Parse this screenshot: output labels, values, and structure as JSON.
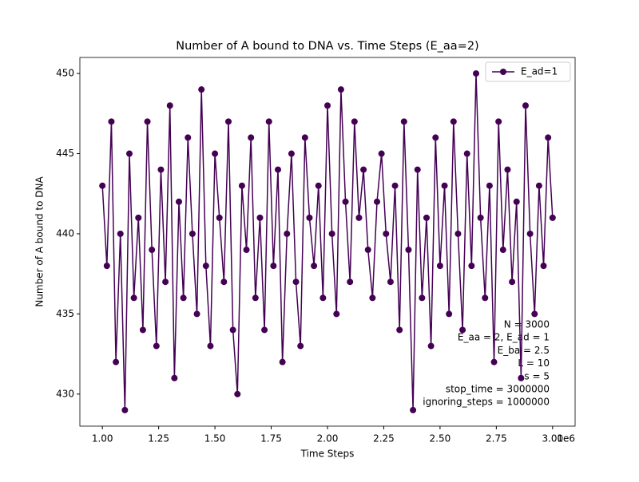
{
  "chart_data": {
    "type": "line",
    "title": "Number of A bound to DNA vs. Time Steps (E_aa=2)",
    "xlabel": "Time Steps",
    "ylabel": "Number of A bound to DNA",
    "x_offset_label": "1e6",
    "x": [
      1000000,
      1020000,
      1040000,
      1060000,
      1080000,
      1100000,
      1120000,
      1140000,
      1160000,
      1180000,
      1200000,
      1220000,
      1240000,
      1260000,
      1280000,
      1300000,
      1320000,
      1340000,
      1360000,
      1380000,
      1400000,
      1420000,
      1440000,
      1460000,
      1480000,
      1500000,
      1520000,
      1540000,
      1560000,
      1580000,
      1600000,
      1620000,
      1640000,
      1660000,
      1680000,
      1700000,
      1720000,
      1740000,
      1760000,
      1780000,
      1800000,
      1820000,
      1840000,
      1860000,
      1880000,
      1900000,
      1920000,
      1940000,
      1960000,
      1980000,
      2000000,
      2020000,
      2040000,
      2060000,
      2080000,
      2100000,
      2120000,
      2140000,
      2160000,
      2180000,
      2200000,
      2220000,
      2240000,
      2260000,
      2280000,
      2300000,
      2320000,
      2340000,
      2360000,
      2380000,
      2400000,
      2420000,
      2440000,
      2460000,
      2480000,
      2500000,
      2520000,
      2540000,
      2560000,
      2580000,
      2600000,
      2620000,
      2640000,
      2660000,
      2680000,
      2700000,
      2720000,
      2740000,
      2760000,
      2780000,
      2800000,
      2820000,
      2840000,
      2860000,
      2880000,
      2900000,
      2920000,
      2940000,
      2960000,
      2980000,
      3000000
    ],
    "series": [
      {
        "name": "E_ad=1",
        "color": "#440154",
        "values": [
          443,
          438,
          447,
          432,
          440,
          429,
          445,
          436,
          441,
          434,
          447,
          439,
          433,
          444,
          437,
          448,
          431,
          442,
          436,
          446,
          440,
          435,
          449,
          438,
          433,
          445,
          441,
          437,
          447,
          434,
          430,
          443,
          439,
          446,
          436,
          441,
          434,
          447,
          438,
          444,
          432,
          440,
          445,
          437,
          433,
          446,
          441,
          438,
          443,
          436,
          448,
          440,
          435,
          449,
          442,
          437,
          447,
          441,
          444,
          439,
          436,
          442,
          445,
          440,
          437,
          443,
          434,
          447,
          439,
          429,
          444,
          436,
          441,
          433,
          446,
          438,
          443,
          435,
          447,
          440,
          434,
          445,
          438,
          450,
          441,
          436,
          443,
          432,
          447,
          439,
          444,
          437,
          442,
          431,
          448,
          440,
          435,
          443,
          438,
          446,
          441
        ]
      }
    ],
    "xlim": [
      900000,
      3100000
    ],
    "ylim": [
      428,
      451
    ],
    "xticks": [
      {
        "value": 1000000,
        "label": "1.00"
      },
      {
        "value": 1250000,
        "label": "1.25"
      },
      {
        "value": 1500000,
        "label": "1.50"
      },
      {
        "value": 1750000,
        "label": "1.75"
      },
      {
        "value": 2000000,
        "label": "2.00"
      },
      {
        "value": 2250000,
        "label": "2.25"
      },
      {
        "value": 2500000,
        "label": "2.50"
      },
      {
        "value": 2750000,
        "label": "2.75"
      },
      {
        "value": 3000000,
        "label": "3.00"
      }
    ],
    "yticks": [
      430,
      435,
      440,
      445,
      450
    ],
    "annotation": [
      "N = 3000",
      "E_aa = 2, E_ad = 1",
      "E_ba = 2.5",
      "L = 10",
      "s = 5",
      "stop_time = 3000000",
      "ignoring_steps = 1000000"
    ],
    "legend": "upper right"
  }
}
